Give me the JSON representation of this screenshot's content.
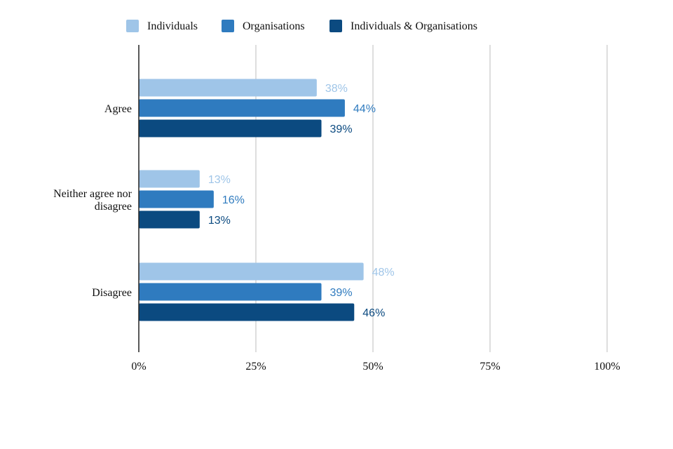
{
  "chart_data": {
    "type": "bar",
    "orientation": "horizontal",
    "categories": [
      "Agree",
      "Neither agree nor disagree",
      "Disagree"
    ],
    "category_lines": [
      [
        "Agree"
      ],
      [
        "Neither agree nor",
        "disagree"
      ],
      [
        "Disagree"
      ]
    ],
    "series": [
      {
        "name": "Individuals",
        "values": [
          38,
          13,
          48
        ],
        "labels": [
          "38%",
          "13%",
          "48%"
        ],
        "color": "#9fc5e8"
      },
      {
        "name": "Organisations",
        "values": [
          44,
          16,
          39
        ],
        "labels": [
          "44%",
          "16%",
          "39%"
        ],
        "color": "#2f7bbf"
      },
      {
        "name": "Individuals & Organisations",
        "values": [
          39,
          13,
          46
        ],
        "labels": [
          "39%",
          "13%",
          "46%"
        ],
        "color": "#0b4a80"
      }
    ],
    "xlim": [
      0,
      100
    ],
    "xticks": [
      0,
      25,
      50,
      75,
      100
    ],
    "xtick_labels": [
      "0%",
      "25%",
      "50%",
      "75%",
      "100%"
    ],
    "grid": true,
    "legend_position": "top"
  }
}
